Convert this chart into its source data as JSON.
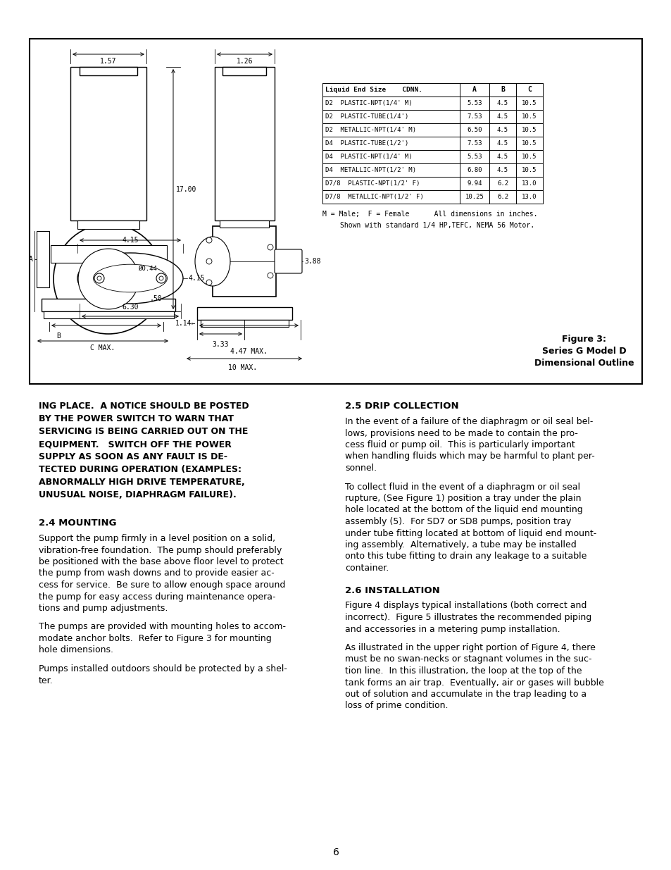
{
  "page_background": "#ffffff",
  "border_color": "#000000",
  "text_color": "#000000",
  "page_number": "6",
  "figure_caption_lines": [
    "Figure 3:",
    "Series G Model D",
    "Dimensional Outline"
  ],
  "table_header": [
    "Liquid End Size    CDNN.",
    "A",
    "B",
    "C"
  ],
  "table_rows": [
    [
      "D2  PLASTIC-NPT(1/4' M)",
      "5.53",
      "4.5",
      "10.5"
    ],
    [
      "D2  PLASTIC-TUBE(1/4')",
      "7.53",
      "4.5",
      "10.5"
    ],
    [
      "D2  METALLIC-NPT(1/4' M)",
      "6.50",
      "4.5",
      "10.5"
    ],
    [
      "D4  PLASTIC-TUBE(1/2')",
      "7.53",
      "4.5",
      "10.5"
    ],
    [
      "D4  PLASTIC-NPT(1/4' M)",
      "5.53",
      "4.5",
      "10.5"
    ],
    [
      "D4  METALLIC-NPT(1/2' M)",
      "6.80",
      "4.5",
      "10.5"
    ],
    [
      "D7/8  PLASTIC-NPT(1/2' F)",
      "9.94",
      "6.2",
      "13.0"
    ],
    [
      "D7/8  METALLIC-NPT(1/2' F)",
      "10.25",
      "6.2",
      "13.0"
    ]
  ],
  "table_note1": "M = Male;  F = Female      All dimensions in inches.",
  "table_note2": "Shown with standard 1/4 HP,TEFC, NEMA 56 Motor.",
  "left_bold_lines": [
    "ING PLACE.  A NOTICE SHOULD BE POSTED",
    "BY THE POWER SWITCH TO WARN THAT",
    "SERVICING IS BEING CARRIED OUT ON THE",
    "EQUIPMENT.   SWITCH OFF THE POWER",
    "SUPPLY AS SOON AS ANY FAULT IS DE-",
    "TECTED DURING OPERATION (EXAMPLES:",
    "ABNORMALLY HIGH DRIVE TEMPERATURE,",
    "UNUSUAL NOISE, DIAPHRAGM FAILURE)."
  ],
  "s24_title": "2.4 MOUNTING",
  "s24_p1_lines": [
    "Support the pump firmly in a level position on a solid,",
    "vibration-free foundation.  The pump should preferably",
    "be positioned with the base above floor level to protect",
    "the pump from wash downs and to provide easier ac-",
    "cess for service.  Be sure to allow enough space around",
    "the pump for easy access during maintenance opera-",
    "tions and pump adjustments."
  ],
  "s24_p2_lines": [
    "The pumps are provided with mounting holes to accom-",
    "modate anchor bolts.  Refer to Figure 3 for mounting",
    "hole dimensions."
  ],
  "s24_p3_lines": [
    "Pumps installed outdoors should be protected by a shel-",
    "ter."
  ],
  "s25_title": "2.5 DRIP COLLECTION",
  "s25_p1_lines": [
    "In the event of a failure of the diaphragm or oil seal bel-",
    "lows, provisions need to be made to contain the pro-",
    "cess fluid or pump oil.  This is particularly important",
    "when handling fluids which may be harmful to plant per-",
    "sonnel."
  ],
  "s25_p2_lines": [
    "To collect fluid in the event of a diaphragm or oil seal",
    "rupture, (See Figure 1) position a tray under the plain",
    "hole located at the bottom of the liquid end mounting",
    "assembly (5).  For SD7 or SD8 pumps, position tray",
    "under tube fitting located at bottom of liquid end mount-",
    "ing assembly.  Alternatively, a tube may be installed",
    "onto this tube fitting to drain any leakage to a suitable",
    "container."
  ],
  "s26_title": "2.6 INSTALLATION",
  "s26_p1_lines": [
    "Figure 4 displays typical installations (both correct and",
    "incorrect).  Figure 5 illustrates the recommended piping",
    "and accessories in a metering pump installation."
  ],
  "s26_p2_lines": [
    "As illustrated in the upper right portion of Figure 4, there",
    "must be no swan-necks or stagnant volumes in the suc-",
    "tion line.  In this illustration, the loop at the top of the",
    "tank forms an air trap.  Eventually, air or gases will bubble",
    "out of solution and accumulate in the trap leading to a",
    "loss of prime condition."
  ]
}
